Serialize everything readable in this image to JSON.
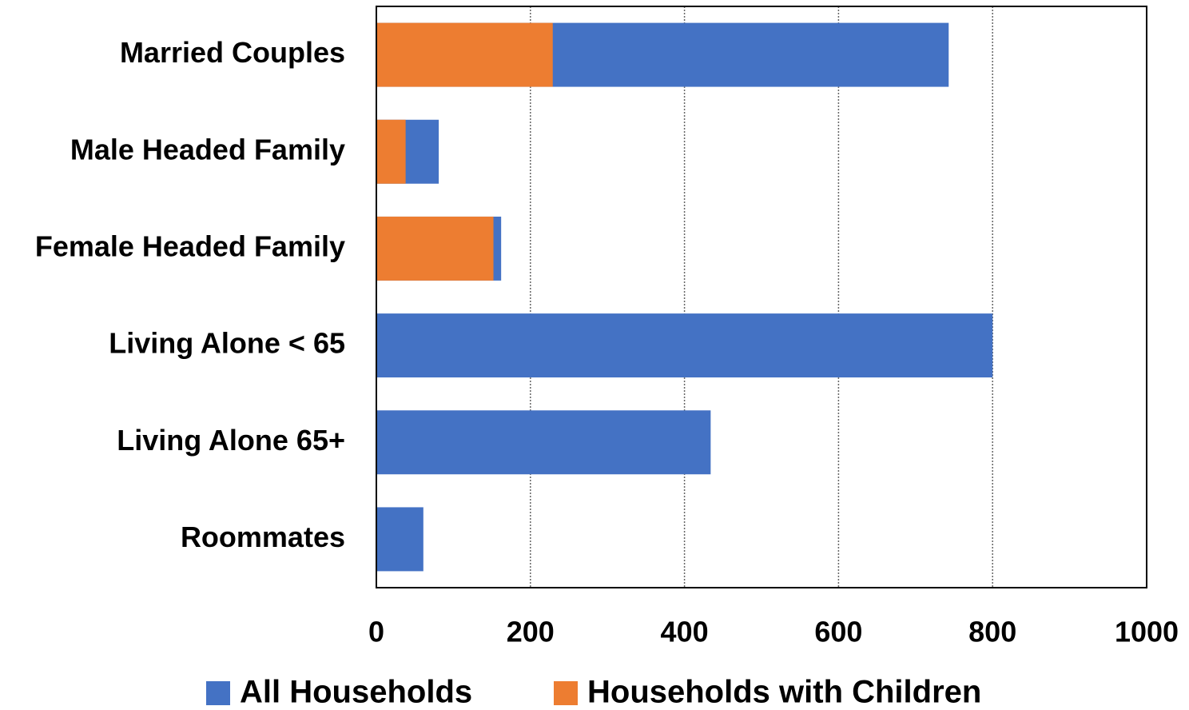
{
  "chart_data": {
    "type": "bar",
    "orientation": "horizontal",
    "overlap": true,
    "categories": [
      "Married Couples",
      "Male Headed Family",
      "Female Headed Family",
      "Living Alone < 65",
      "Living Alone 65+",
      "Roommates"
    ],
    "series": [
      {
        "name": "All Households",
        "color": "#4472c4",
        "values": [
          743,
          81,
          162,
          800,
          434,
          61
        ]
      },
      {
        "name": "Households with Children",
        "color": "#ed7d31",
        "values": [
          229,
          38,
          152,
          0,
          0,
          0
        ]
      }
    ],
    "xlim": [
      0,
      1000
    ],
    "xticks": [
      0,
      200,
      400,
      600,
      800,
      1000
    ],
    "grid": true,
    "legend": "bottom"
  }
}
